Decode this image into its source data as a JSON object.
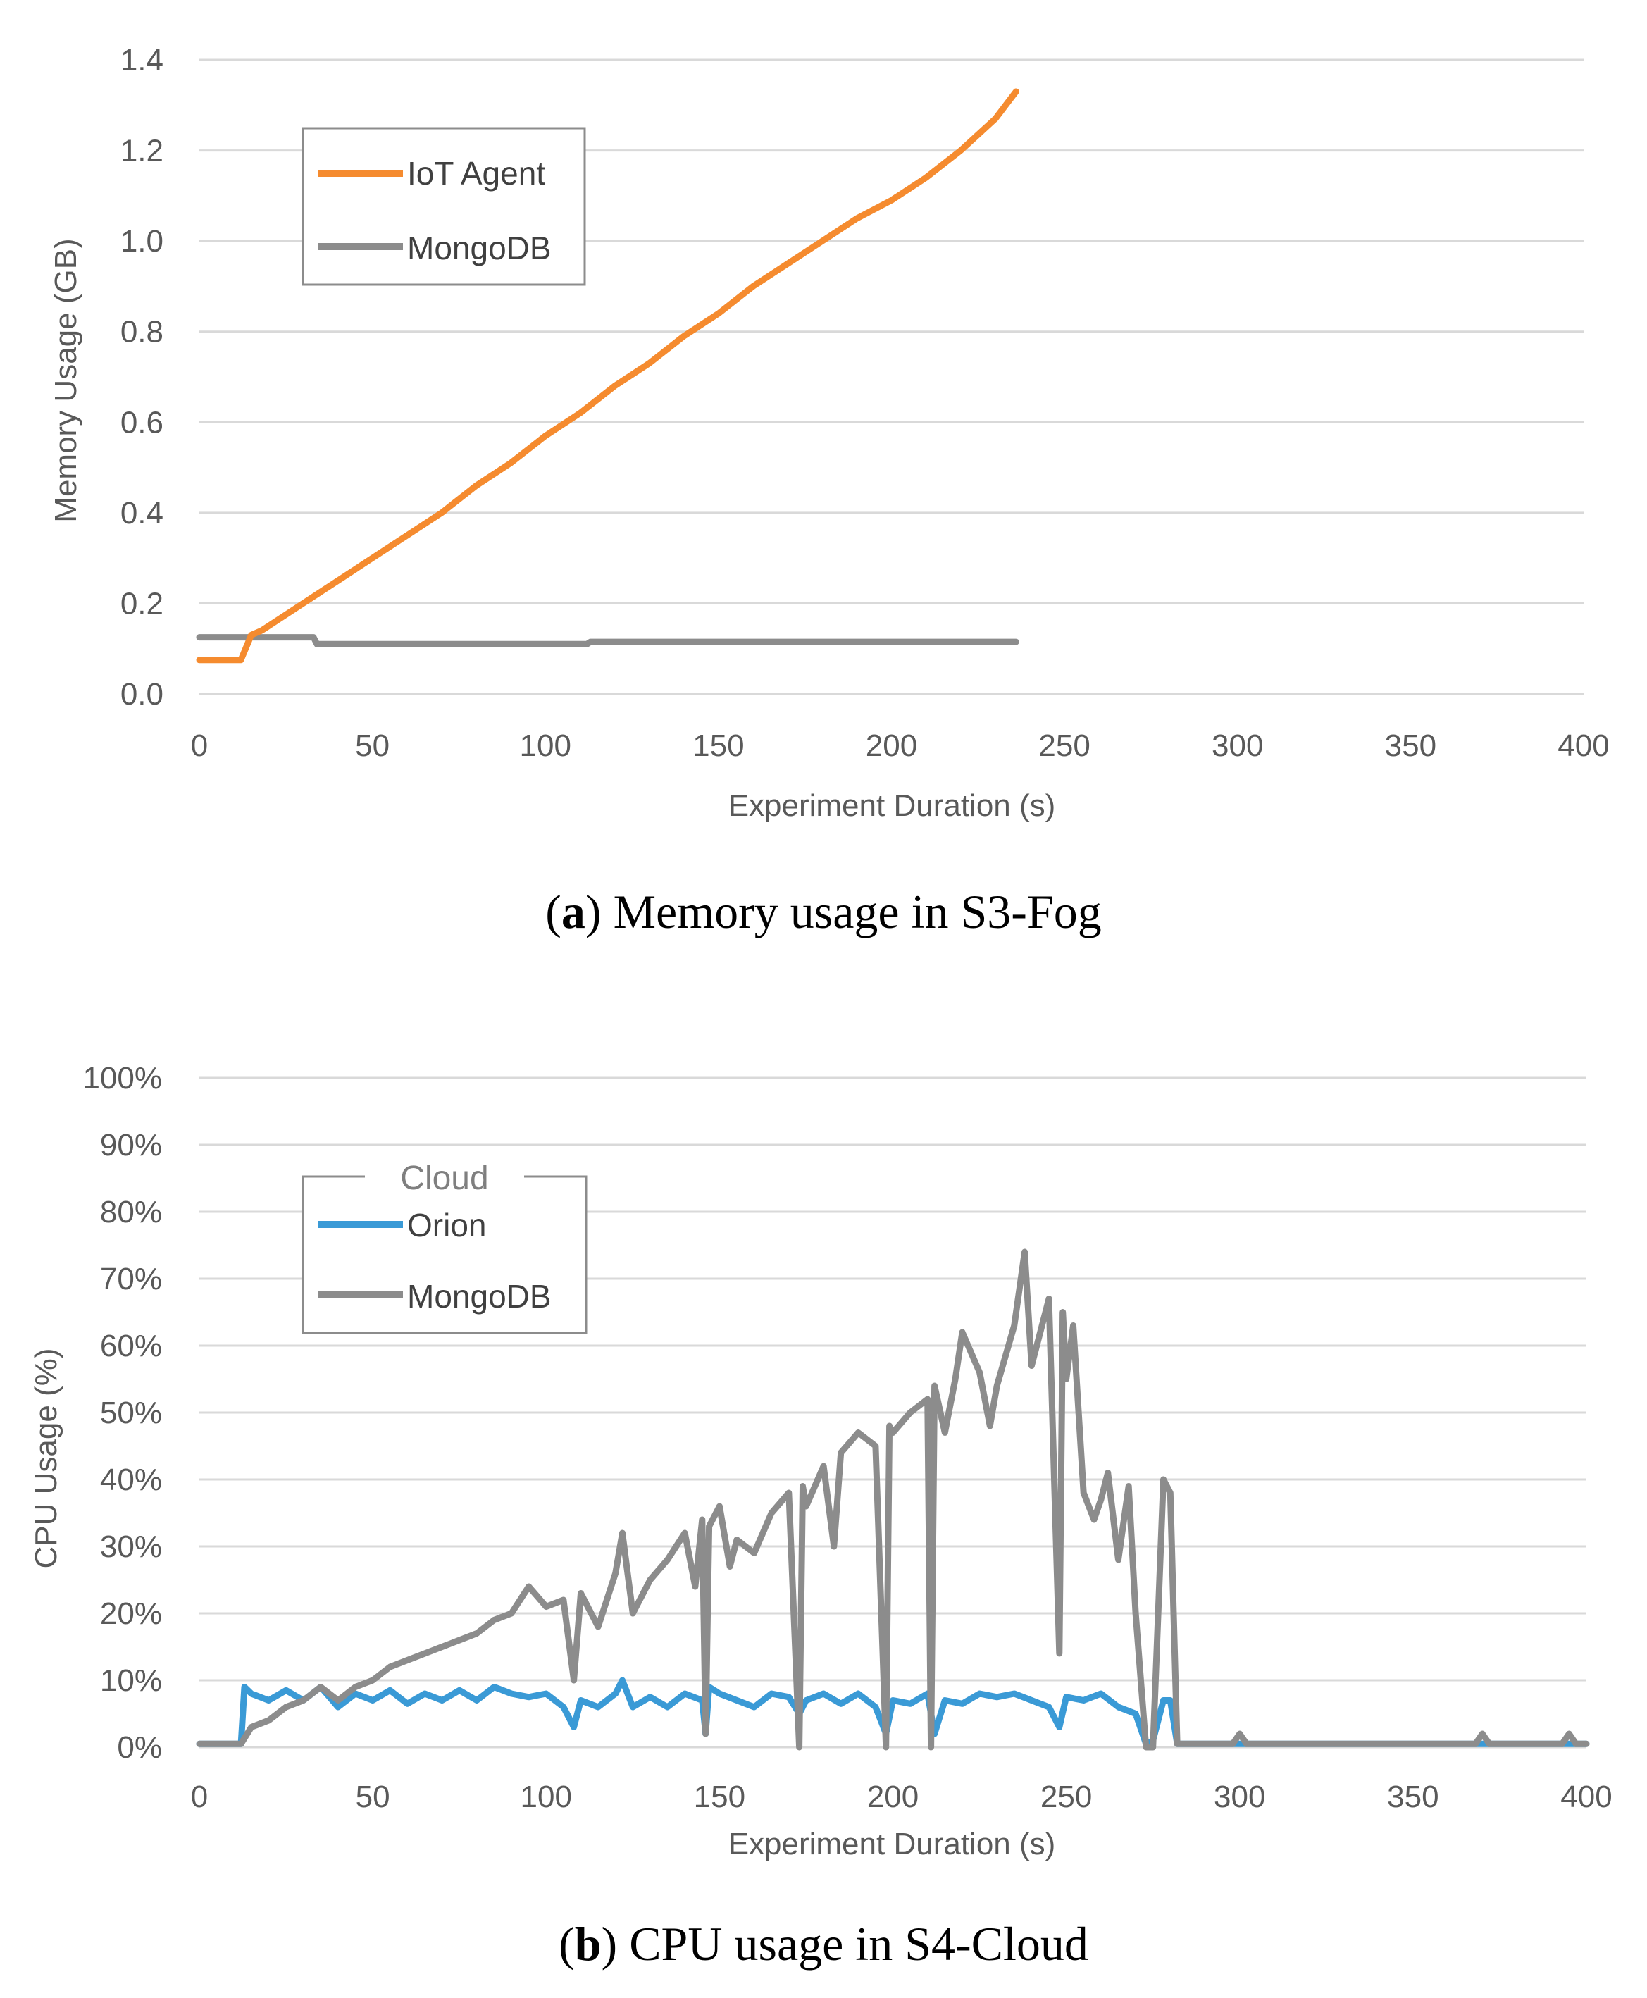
{
  "chart_data": [
    {
      "id": "a",
      "type": "line",
      "caption_letter": "a",
      "caption_text": "Memory usage in S3-Fog",
      "xlabel": "Experiment Duration (s)",
      "ylabel": "Memory Usage (GB)",
      "xlim": [
        0,
        400
      ],
      "ylim": [
        0,
        1.4
      ],
      "xticks": [
        "0",
        "50",
        "100",
        "150",
        "200",
        "250",
        "300",
        "350",
        "400"
      ],
      "yticks": [
        "0.0",
        "0.2",
        "0.4",
        "0.6",
        "0.8",
        "1.0",
        "1.2",
        "1.4"
      ],
      "grid": true,
      "legend": {
        "title": "",
        "position": "top-left",
        "entries": [
          "IoT Agent",
          "MongoDB"
        ]
      },
      "series": [
        {
          "name": "IoT Agent",
          "color": "#F58B2F",
          "x": [
            0,
            12,
            15,
            18,
            30,
            40,
            50,
            60,
            70,
            80,
            90,
            100,
            110,
            120,
            130,
            140,
            150,
            160,
            170,
            180,
            190,
            200,
            210,
            220,
            230,
            236
          ],
          "y": [
            0.075,
            0.075,
            0.13,
            0.14,
            0.2,
            0.25,
            0.3,
            0.35,
            0.4,
            0.46,
            0.51,
            0.57,
            0.62,
            0.68,
            0.73,
            0.79,
            0.84,
            0.9,
            0.95,
            1.0,
            1.05,
            1.09,
            1.14,
            1.2,
            1.27,
            1.33
          ]
        },
        {
          "name": "MongoDB",
          "color": "#8C8C8C",
          "x": [
            0,
            33,
            34,
            112,
            113,
            236
          ],
          "y": [
            0.125,
            0.125,
            0.11,
            0.11,
            0.115,
            0.115
          ]
        }
      ]
    },
    {
      "id": "b",
      "type": "line",
      "caption_letter": "b",
      "caption_text": "CPU usage in S4-Cloud",
      "xlabel": "Experiment Duration (s)",
      "ylabel": "CPU Usage (%)",
      "xlim": [
        0,
        400
      ],
      "ylim": [
        0,
        100
      ],
      "xticks": [
        "0",
        "50",
        "100",
        "150",
        "200",
        "250",
        "300",
        "350",
        "400"
      ],
      "yticks": [
        "0%",
        "10%",
        "20%",
        "30%",
        "40%",
        "50%",
        "60%",
        "70%",
        "80%",
        "90%",
        "100%"
      ],
      "grid": true,
      "legend": {
        "title": "Cloud",
        "position": "top-left",
        "entries": [
          "Orion",
          "MongoDB"
        ]
      },
      "series": [
        {
          "name": "Orion",
          "color": "#3A9AD6",
          "x": [
            0,
            12,
            13,
            15,
            20,
            25,
            30,
            35,
            40,
            45,
            50,
            55,
            60,
            65,
            70,
            75,
            80,
            85,
            90,
            95,
            100,
            105,
            108,
            110,
            115,
            120,
            122,
            125,
            130,
            135,
            140,
            145,
            146,
            147,
            150,
            155,
            160,
            165,
            170,
            173,
            175,
            180,
            185,
            190,
            195,
            198,
            200,
            205,
            210,
            212,
            215,
            220,
            225,
            230,
            235,
            240,
            245,
            248,
            250,
            255,
            260,
            265,
            270,
            273,
            275,
            278,
            280,
            282,
            400
          ],
          "y": [
            0.5,
            0.5,
            9,
            8,
            7,
            8.5,
            7,
            9,
            6,
            8,
            7,
            8.5,
            6.5,
            8,
            7,
            8.5,
            7,
            9,
            8,
            7.5,
            8,
            6,
            3,
            7,
            6,
            8,
            10,
            6,
            7.5,
            6,
            8,
            7,
            2,
            9,
            8,
            7,
            6,
            8,
            7.5,
            5,
            7,
            8,
            6.5,
            8,
            6,
            2,
            7,
            6.5,
            8,
            2,
            7,
            6.5,
            8,
            7.5,
            8,
            7,
            6,
            3,
            7.5,
            7,
            8,
            6,
            5,
            0.5,
            1,
            7,
            7,
            0.5,
            0.5
          ]
        },
        {
          "name": "MongoDB",
          "color": "#8C8C8C",
          "x": [
            0,
            12,
            15,
            20,
            25,
            30,
            35,
            40,
            45,
            50,
            55,
            60,
            65,
            70,
            75,
            80,
            85,
            90,
            95,
            100,
            105,
            108,
            110,
            115,
            120,
            122,
            125,
            130,
            135,
            140,
            143,
            145,
            146,
            147,
            150,
            153,
            155,
            160,
            165,
            170,
            173,
            174,
            175,
            180,
            183,
            185,
            190,
            195,
            198,
            199,
            200,
            205,
            210,
            211,
            212,
            215,
            218,
            220,
            225,
            228,
            230,
            235,
            238,
            240,
            245,
            248,
            249,
            250,
            252,
            255,
            258,
            260,
            262,
            265,
            268,
            270,
            273,
            275,
            278,
            280,
            282,
            298,
            300,
            302,
            368,
            370,
            372,
            393,
            395,
            397,
            400
          ],
          "y": [
            0.5,
            0.5,
            3,
            4,
            6,
            7,
            9,
            7,
            9,
            10,
            12,
            13,
            14,
            15,
            16,
            17,
            19,
            20,
            24,
            21,
            22,
            10,
            23,
            18,
            26,
            32,
            20,
            25,
            28,
            32,
            24,
            34,
            2,
            33,
            36,
            27,
            31,
            29,
            35,
            38,
            0,
            39,
            36,
            42,
            30,
            44,
            47,
            45,
            0,
            48,
            47,
            50,
            52,
            0,
            54,
            47,
            55,
            62,
            56,
            48,
            54,
            63,
            74,
            57,
            67,
            14,
            65,
            55,
            63,
            38,
            34,
            37,
            41,
            28,
            39,
            20,
            0,
            0,
            40,
            38,
            0.5,
            0.5,
            2,
            0.5,
            0.5,
            2,
            0.5,
            0.5,
            2,
            0.5,
            0.5
          ]
        }
      ]
    }
  ]
}
